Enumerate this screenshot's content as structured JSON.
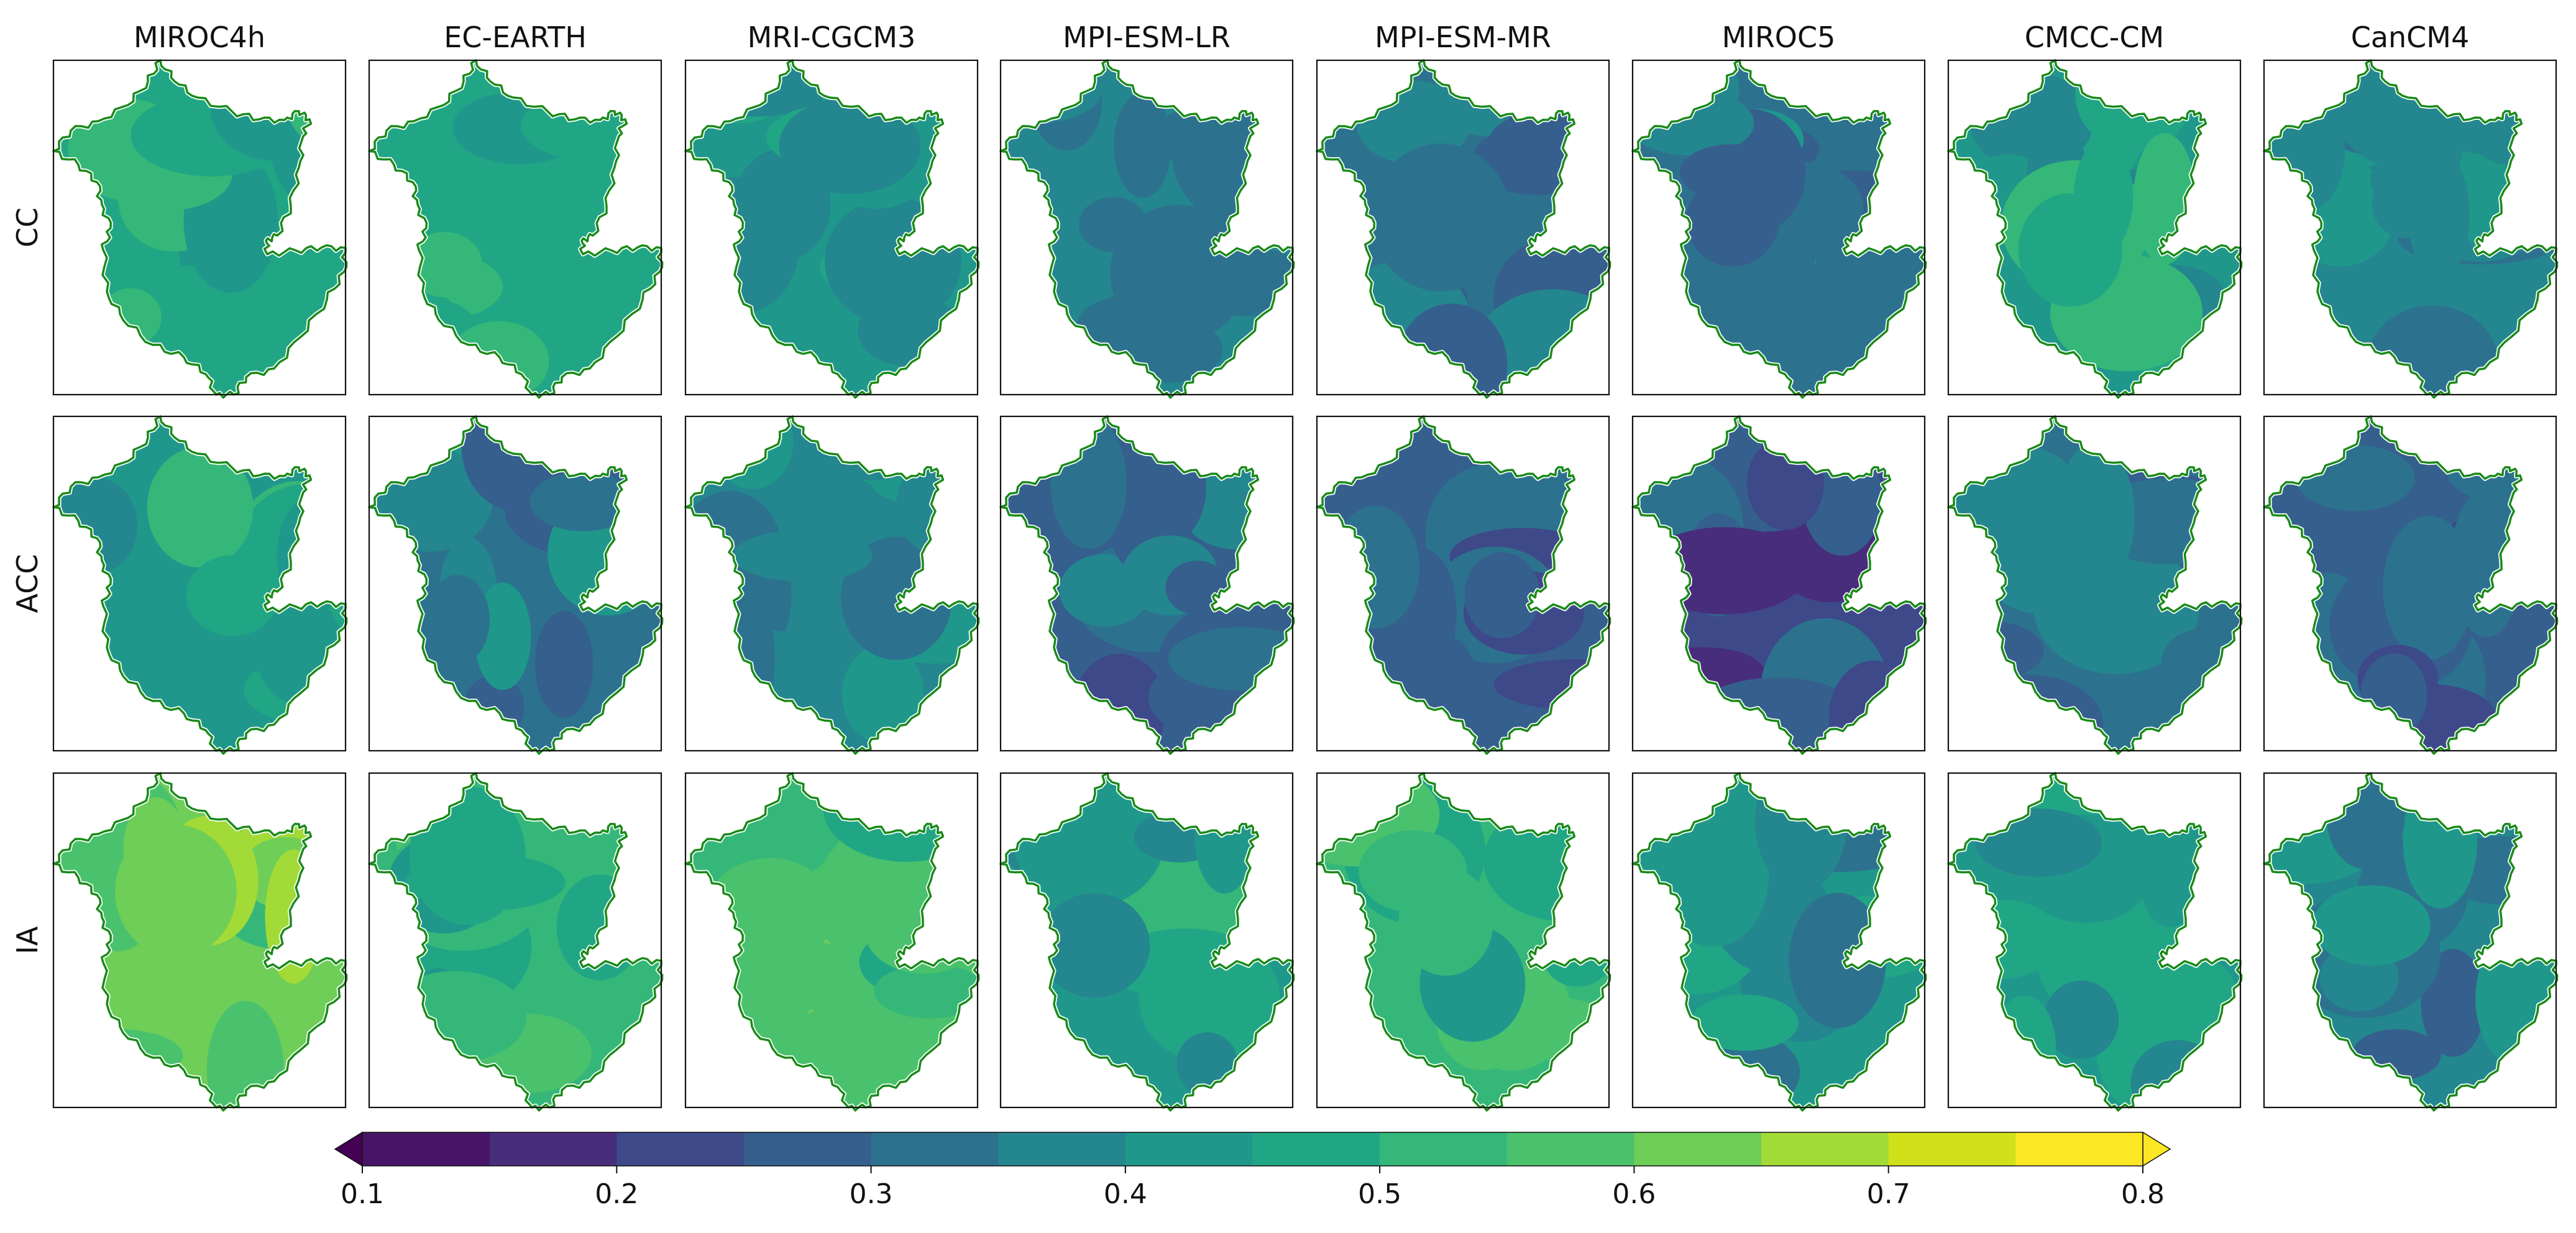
{
  "chart_data": {
    "type": "heatmap",
    "title": "",
    "columns": [
      "MIROC4h",
      "EC-EARTH",
      "MRI-CGCM3",
      "MPI-ESM-LR",
      "MPI-ESM-MR",
      "MIROC5",
      "CMCC-CM",
      "CanCM4"
    ],
    "rows": [
      "CC",
      "ACC",
      "IA"
    ],
    "approx_mean_values": [
      [
        0.47,
        0.49,
        0.42,
        0.37,
        0.33,
        0.33,
        0.44,
        0.38
      ],
      [
        0.45,
        0.35,
        0.37,
        0.3,
        0.29,
        0.25,
        0.33,
        0.28
      ],
      [
        0.61,
        0.52,
        0.55,
        0.45,
        0.52,
        0.4,
        0.42,
        0.37
      ]
    ],
    "colorbar": {
      "ticks": [
        "0.1",
        "0.2",
        "0.3",
        "0.4",
        "0.5",
        "0.6",
        "0.7",
        "0.8"
      ],
      "range": [
        0.1,
        0.8
      ],
      "step": 0.05,
      "extend": "both",
      "colormap": "viridis",
      "orientation": "horizontal",
      "placement": "bottom"
    },
    "colors": {
      "boundary": "#1a8a1a",
      "under": "#440154",
      "over": "#fde725",
      "levels": [
        "#481467",
        "#472d7b",
        "#3e4989",
        "#355f8d",
        "#2c728e",
        "#24868e",
        "#1f988b",
        "#21a685",
        "#35b779",
        "#4ac16d",
        "#6ece58",
        "#a2da37",
        "#d0e11c",
        "#fde725"
      ]
    }
  }
}
